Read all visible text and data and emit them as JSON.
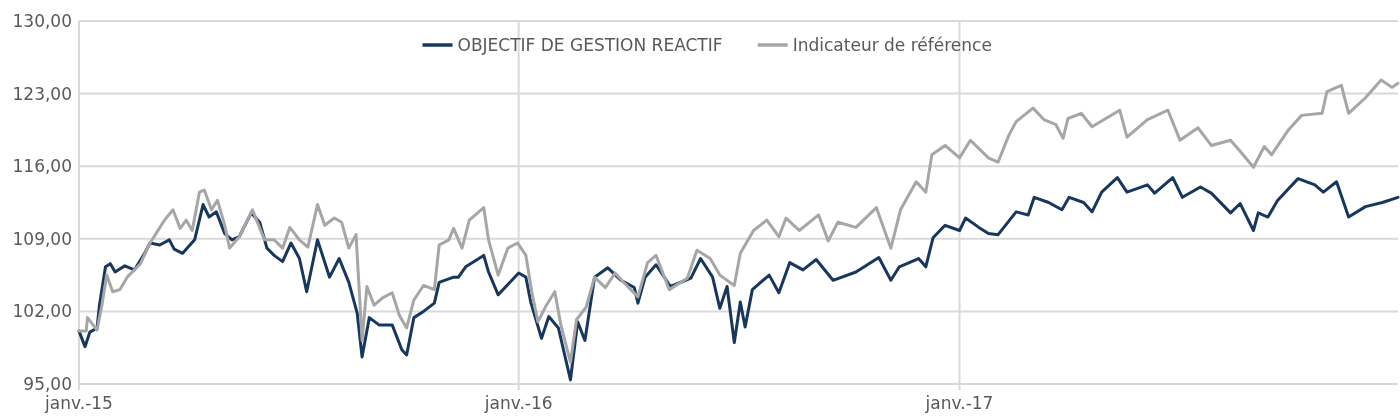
{
  "chart_data": {
    "type": "line",
    "xlim": [
      "2015-01-01",
      "2017-12-31"
    ],
    "ylim": [
      95,
      130
    ],
    "yticks": [
      {
        "value": 95,
        "label": "95,00"
      },
      {
        "value": 102,
        "label": "102,00"
      },
      {
        "value": 109,
        "label": "109,00"
      },
      {
        "value": 116,
        "label": "116,00"
      },
      {
        "value": 123,
        "label": "123,00"
      },
      {
        "value": 130,
        "label": "130,00"
      }
    ],
    "xticks": [
      {
        "value": "2015-01-01",
        "label": "janv.-15"
      },
      {
        "value": "2016-01-01",
        "label": "janv.-16"
      },
      {
        "value": "2017-01-01",
        "label": "janv.-17"
      }
    ],
    "grid": true,
    "legend": "top",
    "marker": "none",
    "line_style": "solid",
    "series": [
      {
        "name": "OBJECTIF DE GESTION REACTIF",
        "color": "#17375e",
        "x": [
          "2015-01-01",
          "2015-01-06",
          "2015-01-10",
          "2015-01-16",
          "2015-01-18",
          "2015-01-23",
          "2015-01-27",
          "2015-01-31",
          "2015-02-08",
          "2015-02-16",
          "2015-02-25",
          "2015-03-01",
          "2015-03-09",
          "2015-03-17",
          "2015-03-21",
          "2015-03-28",
          "2015-04-07",
          "2015-04-14",
          "2015-04-19",
          "2015-04-25",
          "2015-05-02",
          "2015-05-08",
          "2015-05-14",
          "2015-05-24",
          "2015-05-31",
          "2015-06-06",
          "2015-06-12",
          "2015-06-19",
          "2015-06-26",
          "2015-07-03",
          "2015-07-09",
          "2015-07-18",
          "2015-07-28",
          "2015-08-05",
          "2015-08-13",
          "2015-08-20",
          "2015-08-24",
          "2015-08-30",
          "2015-09-07",
          "2015-09-18",
          "2015-09-26",
          "2015-09-30",
          "2015-10-06",
          "2015-10-14",
          "2015-10-23",
          "2015-10-27",
          "2015-11-08",
          "2015-11-12",
          "2015-11-18",
          "2015-12-03",
          "2015-12-07",
          "2015-12-15",
          "2016-01-01",
          "2016-01-07",
          "2016-01-11",
          "2016-01-20",
          "2016-01-26",
          "2016-02-03",
          "2016-02-13",
          "2016-02-19",
          "2016-02-25",
          "2016-03-04",
          "2016-03-15",
          "2016-03-26",
          "2016-04-06",
          "2016-04-09",
          "2016-04-15",
          "2016-04-24",
          "2016-05-06",
          "2016-05-23",
          "2016-05-31",
          "2016-06-10",
          "2016-06-16",
          "2016-06-22",
          "2016-06-28",
          "2016-07-03",
          "2016-07-07",
          "2016-07-13",
          "2016-07-27",
          "2016-08-04",
          "2016-08-13",
          "2016-08-24",
          "2016-09-04",
          "2016-09-18",
          "2016-10-07",
          "2016-10-26",
          "2016-11-05",
          "2016-11-12",
          "2016-11-28",
          "2016-12-04",
          "2016-12-10",
          "2016-12-20",
          "2017-01-01",
          "2017-01-06",
          "2017-01-17",
          "2017-01-25",
          "2017-02-02",
          "2017-02-17",
          "2017-02-27",
          "2017-03-04",
          "2017-03-16",
          "2017-03-27",
          "2017-04-02",
          "2017-04-14",
          "2017-04-21",
          "2017-04-29",
          "2017-05-12",
          "2017-05-20",
          "2017-06-06",
          "2017-06-12",
          "2017-06-27",
          "2017-07-05",
          "2017-07-20",
          "2017-07-29",
          "2017-08-14",
          "2017-08-22",
          "2017-09-02",
          "2017-09-06",
          "2017-09-14",
          "2017-09-22",
          "2017-10-09",
          "2017-10-23",
          "2017-10-30",
          "2017-11-10",
          "2017-11-20",
          "2017-12-04",
          "2017-12-18",
          "2017-12-31"
        ],
        "values": [
          100.1,
          98.6,
          100.0,
          100.4,
          102.6,
          106.3,
          106.6,
          105.8,
          106.4,
          106.0,
          107.7,
          108.6,
          108.4,
          108.9,
          108.0,
          107.6,
          108.9,
          112.3,
          111.1,
          111.6,
          109.5,
          108.9,
          109.2,
          111.5,
          110.6,
          108.1,
          107.4,
          106.8,
          108.6,
          107.1,
          103.9,
          108.9,
          105.3,
          107.1,
          104.8,
          101.8,
          97.6,
          101.4,
          100.7,
          100.7,
          98.3,
          97.8,
          101.4,
          102.0,
          102.8,
          104.8,
          105.3,
          105.3,
          106.3,
          107.4,
          105.8,
          103.6,
          105.7,
          105.3,
          102.9,
          99.4,
          101.5,
          100.4,
          95.4,
          101.0,
          99.2,
          105.3,
          106.2,
          105.0,
          104.3,
          102.8,
          105.3,
          106.5,
          104.4,
          105.2,
          107.1,
          105.3,
          102.3,
          104.4,
          99.0,
          102.9,
          100.5,
          104.1,
          105.5,
          103.8,
          106.7,
          106.0,
          107.0,
          105.0,
          105.8,
          107.2,
          105.0,
          106.3,
          107.1,
          106.3,
          109.1,
          110.3,
          109.8,
          111.0,
          110.1,
          109.5,
          109.4,
          111.6,
          111.3,
          113.0,
          112.5,
          111.8,
          113.0,
          112.5,
          111.6,
          113.5,
          114.9,
          113.5,
          114.2,
          113.4,
          114.9,
          113.0,
          114.0,
          113.4,
          111.5,
          112.4,
          109.8,
          111.5,
          111.1,
          112.7,
          114.8,
          114.2,
          113.5,
          114.5,
          111.1,
          112.1,
          112.5,
          113.0
        ]
      },
      {
        "name": "Indicateur de référence",
        "color": "#a6a6a6",
        "x": [
          "2015-01-01",
          "2015-01-07",
          "2015-01-08",
          "2015-01-16",
          "2015-01-20",
          "2015-01-24",
          "2015-01-29",
          "2015-02-04",
          "2015-02-10",
          "2015-02-21",
          "2015-03-01",
          "2015-03-13",
          "2015-03-20",
          "2015-03-26",
          "2015-03-31",
          "2015-04-05",
          "2015-04-11",
          "2015-04-15",
          "2015-04-21",
          "2015-04-26",
          "2015-05-02",
          "2015-05-06",
          "2015-05-14",
          "2015-05-25",
          "2015-06-04",
          "2015-06-12",
          "2015-06-19",
          "2015-06-25",
          "2015-07-03",
          "2015-07-10",
          "2015-07-18",
          "2015-07-24",
          "2015-08-01",
          "2015-08-07",
          "2015-08-13",
          "2015-08-19",
          "2015-08-24",
          "2015-08-28",
          "2015-09-03",
          "2015-09-10",
          "2015-09-18",
          "2015-09-24",
          "2015-09-30",
          "2015-10-06",
          "2015-10-14",
          "2015-10-23",
          "2015-10-27",
          "2015-11-04",
          "2015-11-08",
          "2015-11-15",
          "2015-11-21",
          "2015-12-03",
          "2015-12-07",
          "2015-12-15",
          "2015-12-23",
          "2015-12-31",
          "2016-01-07",
          "2016-01-12",
          "2016-01-17",
          "2016-01-24",
          "2016-01-31",
          "2016-02-05",
          "2016-02-13",
          "2016-02-18",
          "2016-02-26",
          "2016-03-04",
          "2016-03-13",
          "2016-03-21",
          "2016-03-29",
          "2016-04-09",
          "2016-04-17",
          "2016-04-24",
          "2016-05-05",
          "2016-05-20",
          "2016-05-28",
          "2016-06-08",
          "2016-06-16",
          "2016-06-28",
          "2016-07-03",
          "2016-07-14",
          "2016-07-25",
          "2016-08-04",
          "2016-08-10",
          "2016-08-21",
          "2016-09-06",
          "2016-09-14",
          "2016-09-22",
          "2016-10-07",
          "2016-10-24",
          "2016-11-05",
          "2016-11-13",
          "2016-11-26",
          "2016-12-04",
          "2016-12-09",
          "2016-12-20",
          "2017-01-01",
          "2017-01-10",
          "2017-01-25",
          "2017-02-02",
          "2017-02-11",
          "2017-02-17",
          "2017-03-03",
          "2017-03-12",
          "2017-03-22",
          "2017-03-28",
          "2017-04-01",
          "2017-04-12",
          "2017-04-21",
          "2017-05-01",
          "2017-05-14",
          "2017-05-20",
          "2017-06-06",
          "2017-06-23",
          "2017-07-03",
          "2017-07-18",
          "2017-07-29",
          "2017-08-14",
          "2017-08-23",
          "2017-09-02",
          "2017-09-11",
          "2017-09-17",
          "2017-10-01",
          "2017-10-12",
          "2017-10-29",
          "2017-11-02",
          "2017-11-14",
          "2017-11-20",
          "2017-12-04",
          "2017-12-17",
          "2017-12-26",
          "2017-12-31"
        ],
        "values": [
          100.1,
          100.1,
          101.4,
          100.2,
          102.6,
          105.5,
          103.9,
          104.1,
          105.3,
          106.6,
          108.6,
          110.8,
          111.8,
          110.0,
          110.8,
          109.8,
          113.5,
          113.7,
          111.8,
          112.7,
          110.3,
          108.1,
          109.2,
          111.8,
          108.9,
          108.9,
          108.1,
          110.1,
          108.9,
          108.2,
          112.3,
          110.3,
          111.0,
          110.6,
          108.1,
          109.4,
          99.2,
          104.4,
          102.6,
          103.3,
          103.8,
          101.6,
          100.4,
          103.1,
          104.5,
          104.1,
          108.4,
          108.9,
          110.0,
          108.1,
          110.8,
          112.0,
          108.9,
          105.5,
          108.1,
          108.6,
          107.4,
          103.8,
          101.0,
          102.6,
          103.9,
          100.7,
          97.1,
          101.2,
          102.4,
          105.3,
          104.3,
          105.7,
          104.7,
          103.4,
          106.7,
          107.4,
          104.1,
          105.2,
          107.9,
          107.1,
          105.5,
          104.5,
          107.6,
          109.8,
          110.8,
          109.2,
          111.0,
          109.8,
          111.3,
          108.8,
          110.6,
          110.1,
          112.0,
          108.1,
          111.8,
          114.5,
          113.5,
          117.1,
          118.0,
          116.8,
          118.5,
          116.8,
          116.4,
          119.0,
          120.3,
          121.6,
          120.5,
          120.0,
          118.7,
          120.6,
          121.1,
          119.8,
          120.5,
          121.4,
          118.8,
          120.5,
          121.4,
          118.5,
          119.7,
          118.0,
          118.5,
          117.3,
          115.9,
          117.9,
          117.1,
          119.5,
          120.9,
          121.1,
          123.2,
          123.8,
          121.1,
          122.6,
          124.3,
          123.6,
          124.0
        ]
      }
    ]
  }
}
